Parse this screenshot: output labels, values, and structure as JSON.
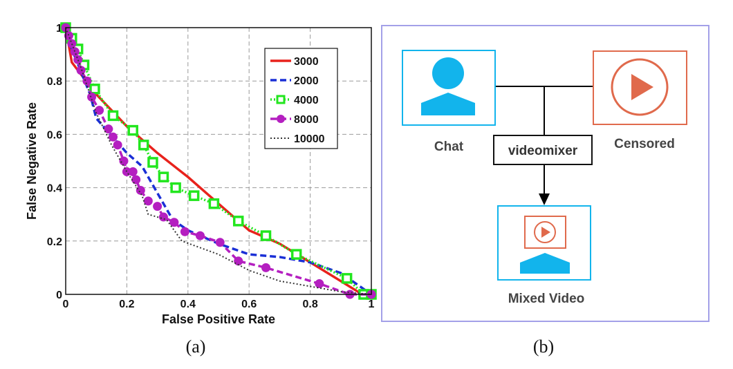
{
  "chart_data": {
    "type": "line",
    "title": "",
    "xlabel": "False Positive Rate",
    "ylabel": "False Negative Rate",
    "xlim": [
      0,
      1
    ],
    "ylim": [
      0,
      1
    ],
    "xticks": [
      "0",
      "0.2",
      "0.4",
      "0.6",
      "0.8",
      "1"
    ],
    "yticks": [
      "0",
      "0.2",
      "0.4",
      "0.6",
      "0.8",
      "1"
    ],
    "grid": true,
    "legend_position": "top-right",
    "series": [
      {
        "name": "3000",
        "color": "#e8221c",
        "style": "solid",
        "marker": "none",
        "x": [
          0,
          0.02,
          0.1,
          0.2,
          0.3,
          0.4,
          0.5,
          0.6,
          0.7,
          0.8,
          0.9,
          0.97,
          1
        ],
        "y": [
          1,
          0.87,
          0.75,
          0.63,
          0.53,
          0.44,
          0.34,
          0.24,
          0.19,
          0.12,
          0.05,
          0,
          0
        ]
      },
      {
        "name": "2000",
        "color": "#1a2fd6",
        "style": "dashed",
        "marker": "none",
        "x": [
          0,
          0.02,
          0.08,
          0.1,
          0.2,
          0.25,
          0.3,
          0.35,
          0.4,
          0.5,
          0.6,
          0.7,
          0.8,
          0.9,
          1
        ],
        "y": [
          1,
          0.92,
          0.75,
          0.66,
          0.53,
          0.48,
          0.38,
          0.28,
          0.24,
          0.19,
          0.15,
          0.14,
          0.12,
          0.08,
          0
        ]
      },
      {
        "name": "4000",
        "color": "#22e61e",
        "style": "dotted",
        "marker": "square",
        "x": [
          0,
          0.02,
          0.04,
          0.06,
          0.095,
          0.155,
          0.22,
          0.255,
          0.285,
          0.32,
          0.36,
          0.42,
          0.485,
          0.565,
          0.655,
          0.755,
          0.92,
          0.975,
          1
        ],
        "y": [
          1,
          0.96,
          0.92,
          0.86,
          0.77,
          0.67,
          0.615,
          0.56,
          0.495,
          0.44,
          0.4,
          0.37,
          0.34,
          0.275,
          0.22,
          0.15,
          0.06,
          0,
          0
        ]
      },
      {
        "name": "8000",
        "color": "#b41fc0",
        "style": "dashed",
        "marker": "circle",
        "x": [
          0,
          0.01,
          0.02,
          0.03,
          0.04,
          0.05,
          0.07,
          0.085,
          0.11,
          0.14,
          0.155,
          0.17,
          0.19,
          0.2,
          0.22,
          0.23,
          0.245,
          0.27,
          0.3,
          0.32,
          0.355,
          0.39,
          0.44,
          0.505,
          0.565,
          0.655,
          0.83,
          0.93,
          1
        ],
        "y": [
          1,
          0.97,
          0.94,
          0.91,
          0.88,
          0.84,
          0.8,
          0.74,
          0.69,
          0.62,
          0.59,
          0.56,
          0.5,
          0.46,
          0.46,
          0.43,
          0.39,
          0.35,
          0.33,
          0.29,
          0.27,
          0.235,
          0.22,
          0.195,
          0.125,
          0.1,
          0.04,
          0,
          0
        ]
      },
      {
        "name": "10000",
        "color": "#333333",
        "style": "dotted",
        "marker": "none",
        "x": [
          0,
          0.05,
          0.1,
          0.15,
          0.2,
          0.25,
          0.27,
          0.33,
          0.38,
          0.5,
          0.6,
          0.7,
          0.8,
          0.9,
          1
        ],
        "y": [
          1,
          0.85,
          0.68,
          0.56,
          0.46,
          0.37,
          0.3,
          0.28,
          0.2,
          0.15,
          0.09,
          0.05,
          0.03,
          0.01,
          0
        ]
      }
    ]
  },
  "diagram": {
    "chat_label": "Chat",
    "censored_label": "Censored",
    "mixer_label": "videomixer",
    "mixed_label": "Mixed Video",
    "colors": {
      "blue": "#12b4ec",
      "orange": "#e06a4c",
      "frame": "#a3a0e8"
    }
  },
  "captions": {
    "a": "(a)",
    "b": "(b)"
  }
}
